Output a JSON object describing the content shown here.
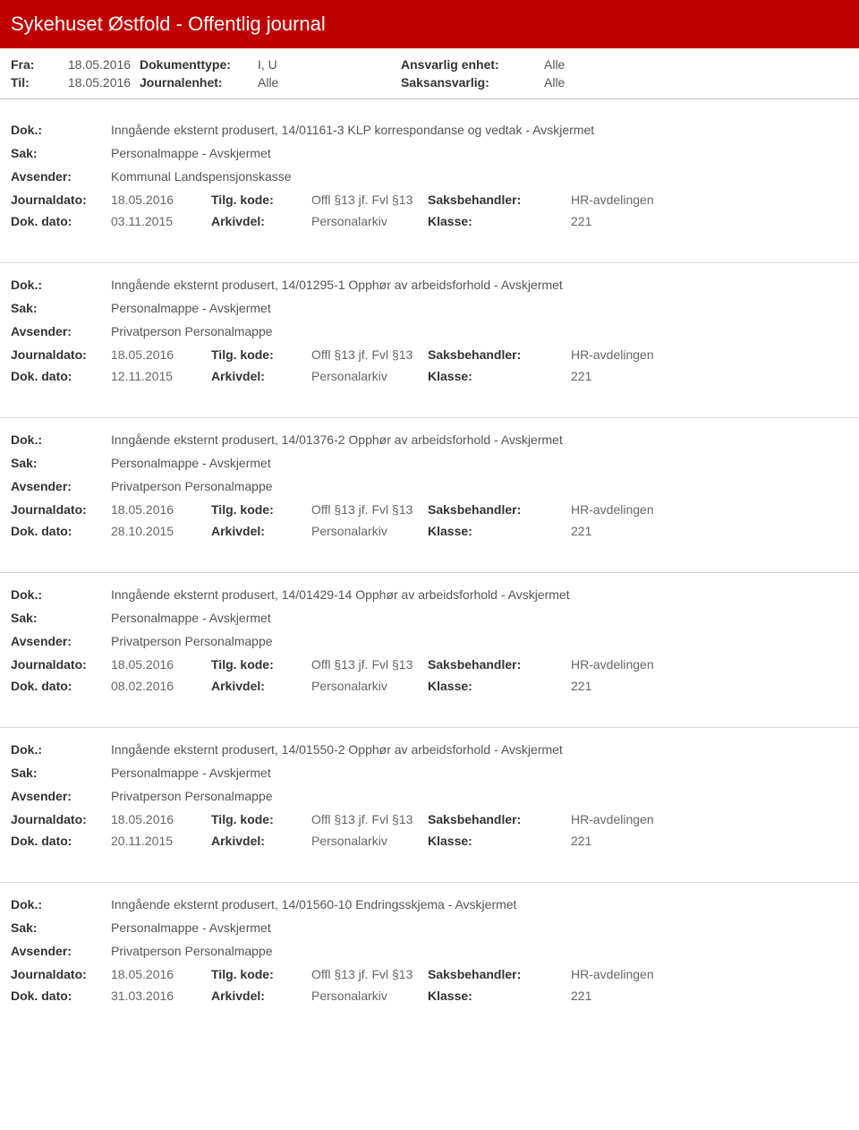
{
  "header": {
    "title": "Sykehuset Østfold - Offentlig journal"
  },
  "meta": {
    "fra_label": "Fra:",
    "fra_value": "18.05.2016",
    "til_label": "Til:",
    "til_value": "18.05.2016",
    "dokumenttype_label": "Dokumenttype:",
    "dokumenttype_value": "I, U",
    "journalenhet_label": "Journalenhet:",
    "journalenhet_value": "Alle",
    "ansvarlig_label": "Ansvarlig enhet:",
    "ansvarlig_value": "Alle",
    "saksansvarlig_label": "Saksansvarlig:",
    "saksansvarlig_value": "Alle"
  },
  "labels": {
    "dok": "Dok.:",
    "sak": "Sak:",
    "avsender": "Avsender:",
    "journaldato": "Journaldato:",
    "dokdato": "Dok. dato:",
    "tilgkode": "Tilg. kode:",
    "arkivdel": "Arkivdel:",
    "saksbehandler": "Saksbehandler:",
    "klasse": "Klasse:"
  },
  "entries": [
    {
      "dok": "Inngående eksternt produsert, 14/01161-3 KLP korrespondanse og vedtak - Avskjermet",
      "sak": "Personalmappe - Avskjermet",
      "avsender": "Kommunal Landspensjonskasse",
      "journaldato": "18.05.2016",
      "tilgkode": "Offl §13 jf. Fvl §13",
      "saksbehandler": "HR-avdelingen",
      "dokdato": "03.11.2015",
      "arkivdel": "Personalarkiv",
      "klasse": "221"
    },
    {
      "dok": "Inngående eksternt produsert, 14/01295-1 Opphør av arbeidsforhold - Avskjermet",
      "sak": "Personalmappe - Avskjermet",
      "avsender": "Privatperson Personalmappe",
      "journaldato": "18.05.2016",
      "tilgkode": "Offl §13 jf. Fvl §13",
      "saksbehandler": "HR-avdelingen",
      "dokdato": "12.11.2015",
      "arkivdel": "Personalarkiv",
      "klasse": "221"
    },
    {
      "dok": "Inngående eksternt produsert, 14/01376-2 Opphør av arbeidsforhold - Avskjermet",
      "sak": "Personalmappe - Avskjermet",
      "avsender": "Privatperson Personalmappe",
      "journaldato": "18.05.2016",
      "tilgkode": "Offl §13 jf. Fvl §13",
      "saksbehandler": "HR-avdelingen",
      "dokdato": "28.10.2015",
      "arkivdel": "Personalarkiv",
      "klasse": "221"
    },
    {
      "dok": "Inngående eksternt produsert, 14/01429-14 Opphør av arbeidsforhold - Avskjermet",
      "sak": "Personalmappe - Avskjermet",
      "avsender": "Privatperson Personalmappe",
      "journaldato": "18.05.2016",
      "tilgkode": "Offl §13 jf. Fvl §13",
      "saksbehandler": "HR-avdelingen",
      "dokdato": "08.02.2016",
      "arkivdel": "Personalarkiv",
      "klasse": "221"
    },
    {
      "dok": "Inngående eksternt produsert, 14/01550-2 Opphør av arbeidsforhold - Avskjermet",
      "sak": "Personalmappe - Avskjermet",
      "avsender": "Privatperson Personalmappe",
      "journaldato": "18.05.2016",
      "tilgkode": "Offl §13 jf. Fvl §13",
      "saksbehandler": "HR-avdelingen",
      "dokdato": "20.11.2015",
      "arkivdel": "Personalarkiv",
      "klasse": "221"
    },
    {
      "dok": "Inngående eksternt produsert, 14/01560-10 Endringsskjema - Avskjermet",
      "sak": "Personalmappe - Avskjermet",
      "avsender": "Privatperson Personalmappe",
      "journaldato": "18.05.2016",
      "tilgkode": "Offl §13 jf. Fvl §13",
      "saksbehandler": "HR-avdelingen",
      "dokdato": "31.03.2016",
      "arkivdel": "Personalarkiv",
      "klasse": "221"
    }
  ]
}
